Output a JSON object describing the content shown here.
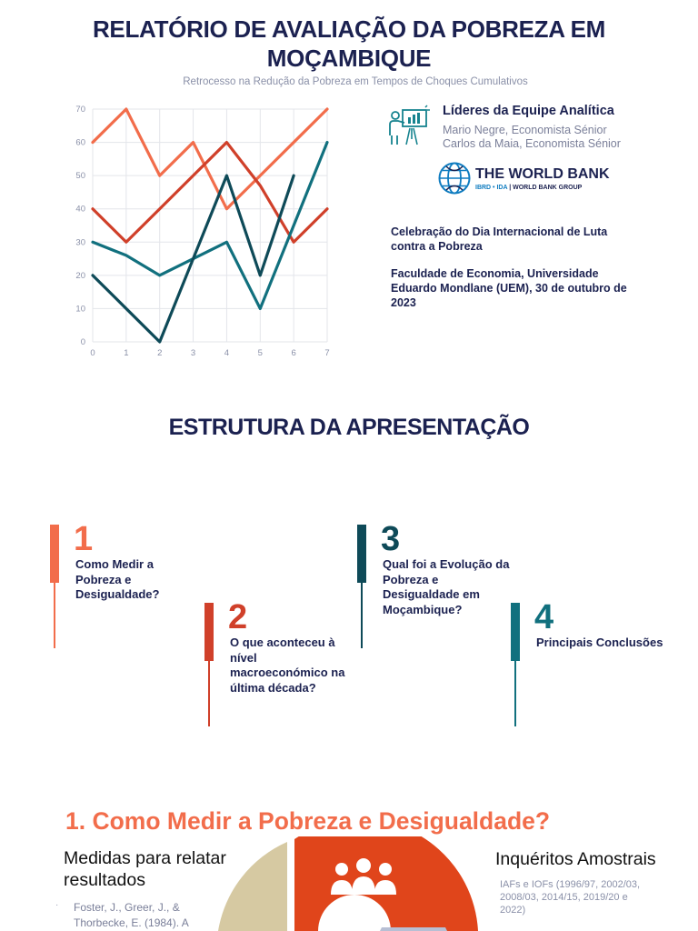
{
  "header": {
    "title_line1": "RELATÓRIO DE AVALIAÇÃO DA POBREZA EM",
    "title_line2": "MOÇAMBIQUE",
    "subtitle": "Retrocesso na Redução da Pobreza em Tempos de Choques Cumulativos"
  },
  "team": {
    "title": "Líderes da Equipe Analítica",
    "members": [
      "Mario Negre, Economista Sénior",
      "Carlos da Maia, Economista Sénior"
    ],
    "icon": "presenter-icon"
  },
  "logo": {
    "name": "THE WORLD BANK",
    "sub_ibrd": "IBRD • IDA",
    "sub_group": "WORLD BANK GROUP"
  },
  "event": {
    "line1": "Celebração do Dia Internacional de Luta contra a Pobreza",
    "line2": "Faculdade de Economia, Universidade Eduardo Mondlane (UEM), 30 de outubro de 2023"
  },
  "chart_data": {
    "type": "line",
    "x": [
      0,
      1,
      2,
      3,
      4,
      5,
      6,
      7
    ],
    "xlim": [
      0,
      7
    ],
    "ylim": [
      0,
      70
    ],
    "yticks": [
      0,
      10,
      20,
      30,
      40,
      50,
      60,
      70
    ],
    "xticks": [
      0,
      1,
      2,
      3,
      4,
      5,
      6,
      7
    ],
    "grid": true,
    "series": [
      {
        "color": "#f26d4b",
        "points": [
          [
            0,
            60
          ],
          [
            1,
            70
          ],
          [
            2,
            50
          ],
          [
            3,
            60
          ],
          [
            4,
            40
          ],
          [
            5,
            50
          ],
          [
            6,
            60
          ],
          [
            7,
            70
          ]
        ]
      },
      {
        "color": "#d0402a",
        "points": [
          [
            0,
            40
          ],
          [
            1,
            30
          ],
          [
            2,
            40
          ],
          [
            3,
            50
          ],
          [
            4,
            60
          ],
          [
            5,
            47
          ],
          [
            6,
            30
          ],
          [
            7,
            40
          ]
        ]
      },
      {
        "color": "#11707e",
        "points": [
          [
            0,
            30
          ],
          [
            1,
            26
          ],
          [
            2,
            20
          ],
          [
            3,
            25
          ],
          [
            4,
            30
          ],
          [
            5,
            10
          ],
          [
            6,
            35
          ],
          [
            7,
            60
          ]
        ]
      },
      {
        "color": "#0e4a58",
        "points": [
          [
            0,
            20
          ],
          [
            1,
            10
          ],
          [
            2,
            0
          ],
          [
            3,
            25
          ],
          [
            4,
            50
          ],
          [
            5,
            20
          ],
          [
            6,
            50
          ]
        ]
      }
    ]
  },
  "structure": {
    "title": "ESTRUTURA DA APRESENTAÇÃO",
    "items": [
      {
        "num": "1",
        "label": "Como Medir a Pobreza e Desigualdade?",
        "color": "#f26d4b"
      },
      {
        "num": "2",
        "label": "O que aconteceu à nível macroeconómico na última década?",
        "color": "#d0402a"
      },
      {
        "num": "3",
        "label": "Qual foi a Evolução da Pobreza e Desigualdade em Moçambique?",
        "color": "#0e4a58"
      },
      {
        "num": "4",
        "label": "Principais Conclusões",
        "color": "#11707e"
      }
    ]
  },
  "section1": {
    "title": "1. Como Medir a Pobreza e Desigualdade?",
    "measures": "Medidas para relatar resultados",
    "reference": "Foster, J., Greer, J., & Thorbecke, E. (1984). A",
    "surveys_title": "Inquéritos Amostrais",
    "surveys_detail": "IAFs e IOFs (1996/97, 2002/03, 2008/03, 2014/15, 2019/20 e 2022)",
    "people_icon": "people-group-icon"
  }
}
